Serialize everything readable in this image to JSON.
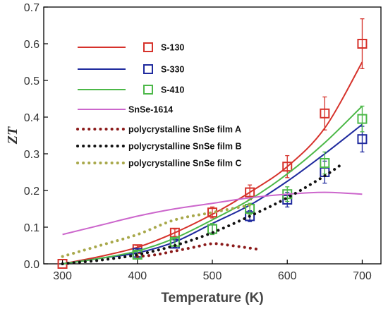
{
  "chart_data": {
    "type": "line",
    "title": "",
    "xlabel": "Temperature (K)",
    "ylabel": "ZT",
    "xlim": [
      275,
      725
    ],
    "ylim": [
      0,
      0.7
    ],
    "xticks": [
      300,
      400,
      500,
      600,
      700
    ],
    "yticks": [
      0.0,
      0.1,
      0.2,
      0.3,
      0.4,
      0.5,
      0.6,
      0.7
    ],
    "xtick_labels": [
      "300",
      "400",
      "500",
      "600",
      "700"
    ],
    "ytick_labels": [
      "0.0",
      "0.1",
      "0.2",
      "0.3",
      "0.4",
      "0.5",
      "0.6",
      "0.7"
    ],
    "grid": false,
    "legend_position": "top-left",
    "series": [
      {
        "name": "S-130",
        "color": "#d6322b",
        "style": "solid+markers",
        "marker": "open-square",
        "x": [
          300,
          400,
          450,
          500,
          550,
          600,
          650,
          700
        ],
        "y": [
          0.0,
          0.04,
          0.085,
          0.14,
          0.195,
          0.265,
          0.41,
          0.6
        ],
        "err": [
          0,
          0.01,
          0.01,
          0.015,
          0.02,
          0.03,
          0.045,
          0.068
        ],
        "fit_x": [
          300,
          350,
          400,
          450,
          500,
          550,
          600,
          650,
          700
        ],
        "fit_y": [
          0.0,
          0.02,
          0.045,
          0.085,
          0.135,
          0.195,
          0.265,
          0.37,
          0.55
        ]
      },
      {
        "name": "S-330",
        "color": "#1f2a9e",
        "style": "solid+markers",
        "marker": "open-square",
        "x": [
          400,
          450,
          500,
          550,
          600,
          650,
          700
        ],
        "y": [
          0.03,
          0.055,
          0.095,
          0.13,
          0.175,
          0.25,
          0.34
        ],
        "err": [
          0.01,
          0.01,
          0.015,
          0.015,
          0.02,
          0.03,
          0.035
        ],
        "fit_x": [
          300,
          350,
          400,
          450,
          500,
          550,
          600,
          650,
          700
        ],
        "fit_y": [
          0.0,
          0.015,
          0.03,
          0.06,
          0.11,
          0.16,
          0.225,
          0.3,
          0.38
        ]
      },
      {
        "name": "S-410",
        "color": "#4cb848",
        "style": "solid+markers",
        "marker": "open-square",
        "x": [
          400,
          450,
          500,
          550,
          600,
          650,
          700
        ],
        "y": [
          0.025,
          0.06,
          0.095,
          0.15,
          0.19,
          0.275,
          0.395
        ],
        "err": [
          0.01,
          0.01,
          0.015,
          0.015,
          0.02,
          0.03,
          0.035
        ],
        "fit_x": [
          300,
          350,
          400,
          450,
          500,
          550,
          600,
          650,
          700
        ],
        "fit_y": [
          0.0,
          0.015,
          0.035,
          0.07,
          0.12,
          0.175,
          0.245,
          0.33,
          0.43
        ]
      },
      {
        "name": "SnSe-1614",
        "color": "#cc66cc",
        "style": "solid",
        "x": [
          300,
          350,
          400,
          450,
          500,
          550,
          600,
          650,
          700
        ],
        "y": [
          0.08,
          0.105,
          0.13,
          0.15,
          0.165,
          0.18,
          0.19,
          0.195,
          0.19
        ]
      },
      {
        "name": "polycrystalline SnSe film A",
        "color": "#8b1a1a",
        "style": "dotted",
        "x": [
          400,
          425,
          450,
          475,
          500,
          525,
          560
        ],
        "y": [
          0.02,
          0.025,
          0.035,
          0.045,
          0.055,
          0.05,
          0.04
        ]
      },
      {
        "name": "polycrystalline SnSe film B",
        "color": "#111111",
        "style": "dotted",
        "x": [
          300,
          350,
          400,
          450,
          500,
          550,
          600,
          650,
          675
        ],
        "y": [
          0.0,
          0.01,
          0.025,
          0.05,
          0.085,
          0.13,
          0.18,
          0.24,
          0.275
        ]
      },
      {
        "name": "polycrystalline SnSe film C",
        "color": "#a8a84a",
        "style": "dotted",
        "x": [
          300,
          350,
          400,
          450,
          500,
          550
        ],
        "y": [
          0.02,
          0.05,
          0.08,
          0.12,
          0.14,
          0.16
        ]
      }
    ]
  }
}
